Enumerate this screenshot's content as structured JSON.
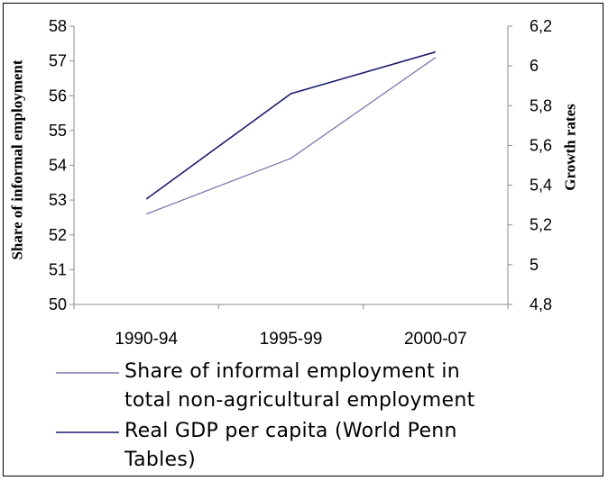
{
  "chart_data": {
    "type": "line",
    "categories": [
      "1990-94",
      "1995-99",
      "2000-07"
    ],
    "series": [
      {
        "name_lines": [
          "Share of informal employment in",
          "total non-agricultural employment"
        ],
        "axis": "left",
        "values": [
          52.6,
          54.2,
          57.1
        ],
        "color": "#7b7bb0"
      },
      {
        "name_lines": [
          "Real GDP per capita (World Penn",
          "Tables)"
        ],
        "axis": "right",
        "values": [
          5.33,
          5.86,
          6.07
        ],
        "color": "#1c1c6e"
      }
    ],
    "y_left": {
      "label": "Share of informal employment",
      "ylim": [
        50,
        58
      ],
      "ticks": [
        "50",
        "51",
        "52",
        "53",
        "54",
        "55",
        "56",
        "57",
        "58"
      ]
    },
    "y_right": {
      "label": "Growth rates",
      "ylim": [
        4.8,
        6.2
      ],
      "ticks": [
        "4,8",
        "5",
        "5,2",
        "5,4",
        "5,6",
        "5,8",
        "6",
        "6,2"
      ]
    },
    "legend_position": "bottom",
    "grid": false
  }
}
